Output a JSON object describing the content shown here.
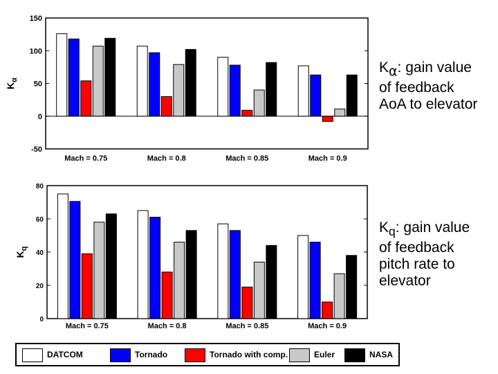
{
  "chart_data": [
    {
      "type": "bar",
      "ylabel": "K",
      "ylabel_subscript": "α",
      "ylim": [
        -50,
        150
      ],
      "yticks": [
        "150",
        "100",
        "50",
        "0",
        "-50"
      ],
      "ytick_values": [
        150,
        100,
        50,
        0,
        -50
      ],
      "categories": [
        "Mach = 0.75",
        "Mach = 0.8",
        "Mach = 0.85",
        "Mach = 0.9"
      ],
      "series": [
        {
          "name": "DATCOM",
          "values": [
            126,
            107,
            90,
            77
          ]
        },
        {
          "name": "Tornado",
          "values": [
            118,
            97,
            78,
            63
          ]
        },
        {
          "name": "Tornado with comp.",
          "values": [
            54,
            30,
            9,
            -8
          ]
        },
        {
          "name": "Euler",
          "values": [
            107,
            79,
            40,
            11
          ]
        },
        {
          "name": "NASA",
          "values": [
            119,
            102,
            82,
            63
          ]
        }
      ]
    },
    {
      "type": "bar",
      "ylabel": "K",
      "ylabel_subscript": "q",
      "ylim": [
        0,
        80
      ],
      "yticks": [
        "80",
        "60",
        "40",
        "20",
        "0"
      ],
      "ytick_values": [
        80,
        60,
        40,
        20,
        0
      ],
      "categories": [
        "Mach = 0.75",
        "Mach = 0.8",
        "Mach = 0.85",
        "Mach = 0.9"
      ],
      "series": [
        {
          "name": "DATCOM",
          "values": [
            75,
            65,
            57,
            50
          ]
        },
        {
          "name": "Tornado",
          "values": [
            70.5,
            61,
            53,
            46
          ]
        },
        {
          "name": "Tornado with comp.",
          "values": [
            39,
            28,
            19,
            10
          ]
        },
        {
          "name": "Euler",
          "values": [
            58,
            46,
            34,
            27
          ]
        },
        {
          "name": "NASA",
          "values": [
            63,
            53,
            44,
            38
          ]
        }
      ]
    }
  ],
  "colors": {
    "DATCOM": "#ffffff",
    "Tornado": "#0000ff",
    "Tornado with comp.": "#ff0000",
    "Euler": "#c8c8c8",
    "NASA": "#000000"
  },
  "notes": {
    "top": {
      "symbol": "K",
      "subscript": "α",
      "text": ": gain value\nof feedback\nAoA to elevator"
    },
    "bottom": {
      "symbol": "K",
      "subscript": "q",
      "text": ": gain value\nof feedback\npitch rate to\nelevator"
    }
  },
  "legend": [
    "DATCOM",
    "Tornado",
    "Tornado with comp.",
    "Euler",
    "NASA"
  ]
}
